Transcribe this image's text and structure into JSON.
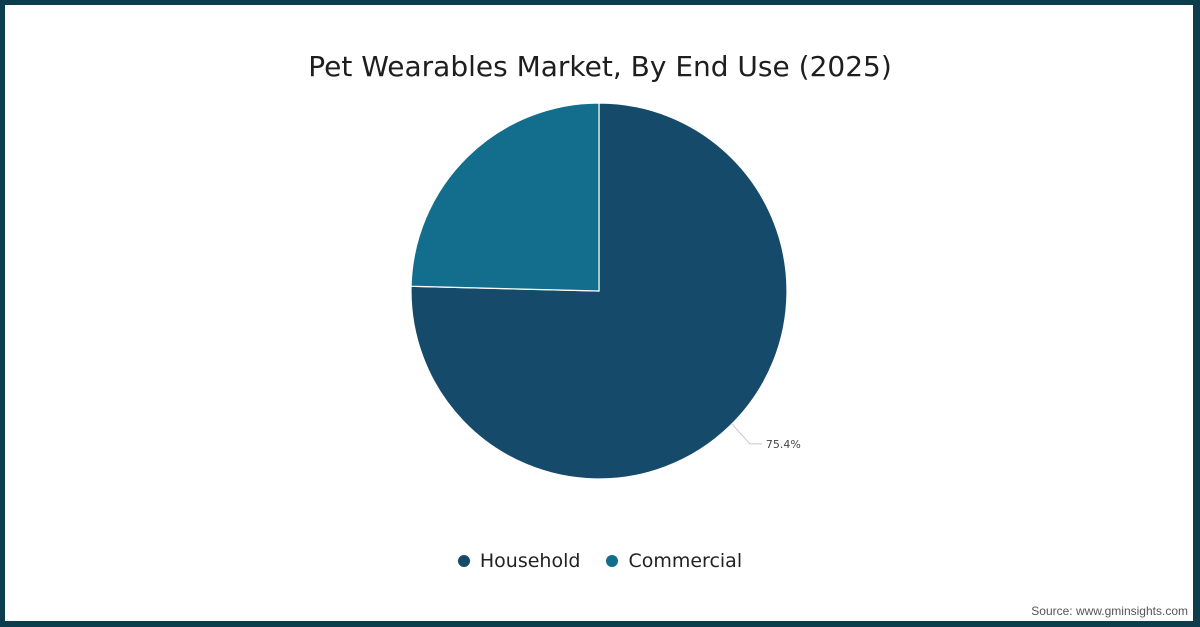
{
  "title": "Pet Wearables Market, By End Use (2025)",
  "source": "Source: www.gminsights.com",
  "colors": {
    "household": "#164a6a",
    "commercial": "#126e8c",
    "border": "#0c3d4f"
  },
  "legend": [
    {
      "label": "Household",
      "color": "#164a6a"
    },
    {
      "label": "Commercial",
      "color": "#126e8c"
    }
  ],
  "data_label": "75.4%",
  "chart_data": {
    "type": "pie",
    "title": "Pet Wearables Market, By End Use (2025)",
    "categories": [
      "Household",
      "Commercial"
    ],
    "values": [
      75.4,
      24.6
    ],
    "unit": "%",
    "data_labels": [
      "75.4%",
      ""
    ],
    "legend_position": "bottom",
    "colors": [
      "#164a6a",
      "#126e8c"
    ]
  }
}
